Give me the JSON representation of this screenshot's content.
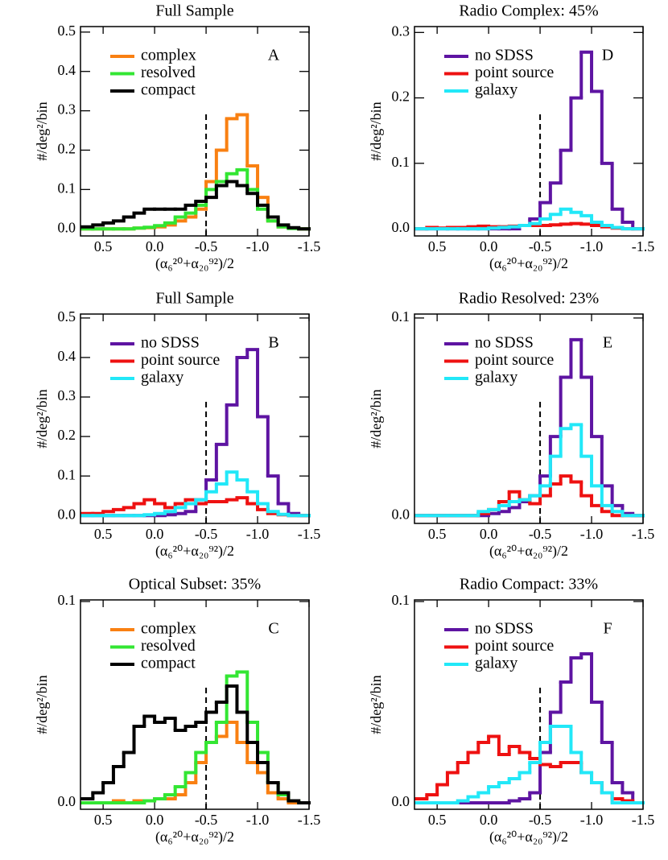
{
  "chart_data": [
    {
      "type": "histogram",
      "title": "Full Sample",
      "annotation": "A",
      "xlabel": "(α₆²⁰+α₂₀⁹²)/2",
      "ylabel": "#/deg²/bin",
      "bins": [
        0.7,
        0.6,
        0.5,
        0.4,
        0.3,
        0.2,
        0.1,
        0,
        -0.1,
        -0.2,
        -0.3,
        -0.4,
        -0.5,
        -0.6,
        -0.7,
        -0.8,
        -0.9,
        -1,
        -1.1,
        -1.2,
        -1.3,
        -1.4,
        -1.5
      ],
      "xlim": [
        0.72,
        -1.5
      ],
      "xticks": [
        0.5,
        {
          "value": 0,
          "label": "0.0"
        },
        -0.5,
        {
          "value": -1,
          "label": "-1.0"
        },
        -1.5
      ],
      "ylim": [
        -0.018,
        0.514
      ],
      "yticks": [
        {
          "value": 0,
          "label": "0.0"
        },
        0.1,
        0.2,
        0.3,
        0.4,
        0.5
      ],
      "vline": -0.5,
      "series": [
        {
          "name": "complex",
          "color": "#f98012",
          "values": [
            0,
            0,
            0,
            0,
            0,
            0.002,
            0.003,
            0.005,
            0.01,
            0.02,
            0.03,
            0.05,
            0.12,
            0.2,
            0.28,
            0.29,
            0.16,
            0.08,
            0.02,
            0.005,
            0.002,
            0
          ]
        },
        {
          "name": "resolved",
          "color": "#33e633",
          "values": [
            0,
            0,
            0,
            0,
            0,
            0.002,
            0.004,
            0.008,
            0.015,
            0.03,
            0.04,
            0.06,
            0.1,
            0.12,
            0.14,
            0.15,
            0.1,
            0.05,
            0.02,
            0.005,
            0.001,
            0
          ]
        },
        {
          "name": "compact",
          "color": "#000000",
          "values": [
            0.005,
            0.01,
            0.015,
            0.02,
            0.03,
            0.04,
            0.05,
            0.05,
            0.05,
            0.05,
            0.06,
            0.07,
            0.08,
            0.11,
            0.12,
            0.11,
            0.09,
            0.06,
            0.03,
            0.01,
            0.003,
            0
          ]
        }
      ]
    },
    {
      "type": "histogram",
      "title": "Full Sample",
      "annotation": "B",
      "xlabel": "(α₆²⁰+α₂₀⁹²)/2",
      "ylabel": "#/deg²/bin",
      "bins": [
        0.7,
        0.6,
        0.5,
        0.4,
        0.3,
        0.2,
        0.1,
        0,
        -0.1,
        -0.2,
        -0.3,
        -0.4,
        -0.5,
        -0.6,
        -0.7,
        -0.8,
        -0.9,
        -1,
        -1.1,
        -1.2,
        -1.3,
        -1.4,
        -1.5
      ],
      "xlim": [
        0.72,
        -1.5
      ],
      "xticks": [
        0.5,
        {
          "value": 0,
          "label": "0.0"
        },
        -0.5,
        {
          "value": -1,
          "label": "-1.0"
        },
        -1.5
      ],
      "ylim": [
        -0.02,
        0.51
      ],
      "yticks": [
        {
          "value": 0,
          "label": "0.0"
        },
        0.1,
        0.2,
        0.3,
        0.4,
        0.5
      ],
      "vline": -0.5,
      "series": [
        {
          "name": "no SDSS",
          "color": "#5e14a2",
          "values": [
            0,
            0,
            0,
            0,
            0,
            0,
            0,
            0,
            0.002,
            0.005,
            0.01,
            0.04,
            0.09,
            0.18,
            0.28,
            0.4,
            0.42,
            0.25,
            0.1,
            0.03,
            0.005,
            0
          ]
        },
        {
          "name": "point source",
          "color": "#ee1111",
          "values": [
            0.005,
            0.005,
            0.01,
            0.015,
            0.02,
            0.03,
            0.04,
            0.03,
            0.02,
            0.03,
            0.04,
            0.03,
            0.035,
            0.035,
            0.04,
            0.045,
            0.03,
            0.015,
            0.005,
            0.002,
            0,
            0
          ]
        },
        {
          "name": "galaxy",
          "color": "#22e8f8",
          "values": [
            0,
            0,
            0,
            0,
            0,
            0,
            0.002,
            0.005,
            0.01,
            0.02,
            0.03,
            0.04,
            0.06,
            0.08,
            0.11,
            0.09,
            0.06,
            0.03,
            0.01,
            0.003,
            0,
            0
          ]
        }
      ]
    },
    {
      "type": "histogram",
      "title": "Optical Subset: 35%",
      "annotation": "C",
      "xlabel": "(α₆²⁰+α₂₀⁹²)/2",
      "ylabel": "#/deg²/bin",
      "bins": [
        0.7,
        0.6,
        0.5,
        0.4,
        0.3,
        0.2,
        0.1,
        0,
        -0.1,
        -0.2,
        -0.3,
        -0.4,
        -0.5,
        -0.6,
        -0.7,
        -0.8,
        -0.9,
        -1,
        -1.1,
        -1.2,
        -1.3,
        -1.4,
        -1.5
      ],
      "xlim": [
        0.72,
        -1.5
      ],
      "xticks": [
        0.5,
        {
          "value": 0,
          "label": "0.0"
        },
        -0.5,
        {
          "value": -1,
          "label": "-1.0"
        },
        -1.5
      ],
      "ylim": [
        -0.0032,
        0.1008
      ],
      "yticks": [
        {
          "value": 0,
          "label": "0.0"
        },
        0.1
      ],
      "vline": -0.5,
      "series": [
        {
          "name": "complex",
          "color": "#f98012",
          "values": [
            0,
            0,
            0,
            0.001,
            0,
            0.001,
            0.001,
            0.002,
            0.002,
            0.004,
            0.01,
            0.02,
            0.03,
            0.033,
            0.04,
            0.03,
            0.02,
            0.015,
            0.005,
            0.002,
            0,
            0
          ]
        },
        {
          "name": "resolved",
          "color": "#33e633",
          "values": [
            0,
            0,
            0,
            0,
            0,
            0,
            0.001,
            0.002,
            0.004,
            0.008,
            0.015,
            0.025,
            0.03,
            0.04,
            0.063,
            0.065,
            0.04,
            0.025,
            0.01,
            0.004,
            0.001,
            0
          ]
        },
        {
          "name": "compact",
          "color": "#000000",
          "values": [
            0.002,
            0.005,
            0.01,
            0.018,
            0.025,
            0.038,
            0.043,
            0.04,
            0.042,
            0.036,
            0.038,
            0.04,
            0.045,
            0.05,
            0.058,
            0.045,
            0.03,
            0.02,
            0.01,
            0.005,
            0.001,
            0
          ]
        }
      ]
    },
    {
      "type": "histogram",
      "title": "Radio Complex: 45%",
      "annotation": "D",
      "xlabel": "(α₆²⁰+α₂₀⁹²)/2",
      "ylabel": "#/deg²/bin",
      "bins": [
        0.7,
        0.6,
        0.5,
        0.4,
        0.3,
        0.2,
        0.1,
        0,
        -0.1,
        -0.2,
        -0.3,
        -0.4,
        -0.5,
        -0.6,
        -0.7,
        -0.8,
        -0.9,
        -1,
        -1.1,
        -1.2,
        -1.3,
        -1.4,
        -1.5
      ],
      "xlim": [
        0.72,
        -1.5
      ],
      "xticks": [
        0.5,
        {
          "value": 0,
          "label": "0.0"
        },
        -0.5,
        {
          "value": -1,
          "label": "-1.0"
        },
        -1.5
      ],
      "ylim": [
        -0.011,
        0.309
      ],
      "yticks": [
        {
          "value": 0,
          "label": "0.0"
        },
        0.1,
        0.2,
        0.3
      ],
      "vline": -0.5,
      "series": [
        {
          "name": "no SDSS",
          "color": "#5e14a2",
          "values": [
            0,
            0,
            0,
            0,
            0,
            0,
            0,
            0,
            0,
            0,
            0.005,
            0.015,
            0.04,
            0.07,
            0.12,
            0.2,
            0.27,
            0.21,
            0.1,
            0.03,
            0.01,
            0
          ]
        },
        {
          "name": "point source",
          "color": "#ee1111",
          "values": [
            0,
            0.002,
            0.001,
            0.002,
            0.002,
            0.003,
            0.004,
            0.003,
            0.003,
            0.004,
            0.005,
            0.005,
            0.005,
            0.006,
            0.007,
            0.008,
            0.007,
            0.005,
            0.003,
            0.001,
            0,
            0
          ]
        },
        {
          "name": "galaxy",
          "color": "#22e8f8",
          "values": [
            0,
            0,
            0,
            0,
            0,
            0,
            0,
            0.001,
            0.002,
            0.003,
            0.005,
            0.008,
            0.015,
            0.022,
            0.03,
            0.025,
            0.02,
            0.01,
            0.005,
            0.002,
            0,
            0
          ]
        }
      ]
    },
    {
      "type": "histogram",
      "title": "Radio Resolved: 23%",
      "annotation": "E",
      "xlabel": "(α₆²⁰+α₂₀⁹²)/2",
      "ylabel": "#/deg²/bin",
      "bins": [
        0.7,
        0.6,
        0.5,
        0.4,
        0.3,
        0.2,
        0.1,
        0,
        -0.1,
        -0.2,
        -0.3,
        -0.4,
        -0.5,
        -0.6,
        -0.7,
        -0.8,
        -0.9,
        -1,
        -1.1,
        -1.2,
        -1.3,
        -1.4,
        -1.5
      ],
      "xlim": [
        0.72,
        -1.5
      ],
      "xticks": [
        0.5,
        {
          "value": 0,
          "label": "0.0"
        },
        -0.5,
        {
          "value": -1,
          "label": "-1.0"
        },
        -1.5
      ],
      "ylim": [
        -0.004,
        0.102
      ],
      "yticks": [
        {
          "value": 0,
          "label": "0.0"
        },
        0.1
      ],
      "vline": -0.5,
      "series": [
        {
          "name": "no SDSS",
          "color": "#5e14a2",
          "values": [
            0,
            0,
            0,
            0,
            0,
            0,
            0,
            0.001,
            0.002,
            0.004,
            0.007,
            0.01,
            0.02,
            0.04,
            0.07,
            0.089,
            0.07,
            0.04,
            0.015,
            0.005,
            0.001,
            0
          ]
        },
        {
          "name": "point source",
          "color": "#ee1111",
          "values": [
            0,
            0,
            0,
            0,
            0,
            0,
            0.001,
            0.003,
            0.007,
            0.012,
            0.008,
            0.006,
            0.01,
            0.016,
            0.02,
            0.017,
            0.01,
            0.005,
            0.002,
            0,
            0,
            0
          ]
        },
        {
          "name": "galaxy",
          "color": "#22e8f8",
          "values": [
            0,
            0,
            0,
            0,
            0,
            0,
            0.002,
            0.003,
            0.005,
            0.007,
            0.008,
            0.01,
            0.015,
            0.03,
            0.044,
            0.046,
            0.03,
            0.015,
            0.005,
            0.002,
            0,
            0
          ]
        }
      ]
    },
    {
      "type": "histogram",
      "title": "Radio Compact: 33%",
      "annotation": "F",
      "xlabel": "(α₆²⁰+α₂₀⁹²)/2",
      "ylabel": "#/deg²/bin",
      "bins": [
        0.7,
        0.6,
        0.5,
        0.4,
        0.3,
        0.2,
        0.1,
        0,
        -0.1,
        -0.2,
        -0.3,
        -0.4,
        -0.5,
        -0.6,
        -0.7,
        -0.8,
        -0.9,
        -1,
        -1.1,
        -1.2,
        -1.3,
        -1.4,
        -1.5
      ],
      "xlim": [
        0.72,
        -1.5
      ],
      "xticks": [
        0.5,
        {
          "value": 0,
          "label": "0.0"
        },
        -0.5,
        {
          "value": -1,
          "label": "-1.0"
        },
        -1.5
      ],
      "ylim": [
        -0.0032,
        0.1008
      ],
      "yticks": [
        {
          "value": 0,
          "label": "0.0"
        },
        0.1
      ],
      "vline": -0.5,
      "series": [
        {
          "name": "no SDSS",
          "color": "#5e14a2",
          "values": [
            0,
            0,
            0,
            0,
            0,
            0,
            0,
            0,
            0,
            0.001,
            0.002,
            0.005,
            0.025,
            0.045,
            0.06,
            0.072,
            0.074,
            0.05,
            0.03,
            0.01,
            0.005,
            0
          ]
        },
        {
          "name": "point source",
          "color": "#ee1111",
          "values": [
            0.002,
            0.004,
            0.009,
            0.015,
            0.02,
            0.025,
            0.03,
            0.033,
            0.024,
            0.028,
            0.025,
            0.022,
            0.019,
            0.018,
            0.02,
            0.02,
            0.015,
            0.01,
            0.005,
            0.002,
            0.001,
            0
          ]
        },
        {
          "name": "galaxy",
          "color": "#22e8f8",
          "values": [
            0,
            0,
            0,
            0,
            0.001,
            0.003,
            0.005,
            0.008,
            0.01,
            0.012,
            0.015,
            0.02,
            0.03,
            0.038,
            0.038,
            0.025,
            0.015,
            0.01,
            0.005,
            0,
            0,
            0
          ]
        }
      ]
    }
  ]
}
